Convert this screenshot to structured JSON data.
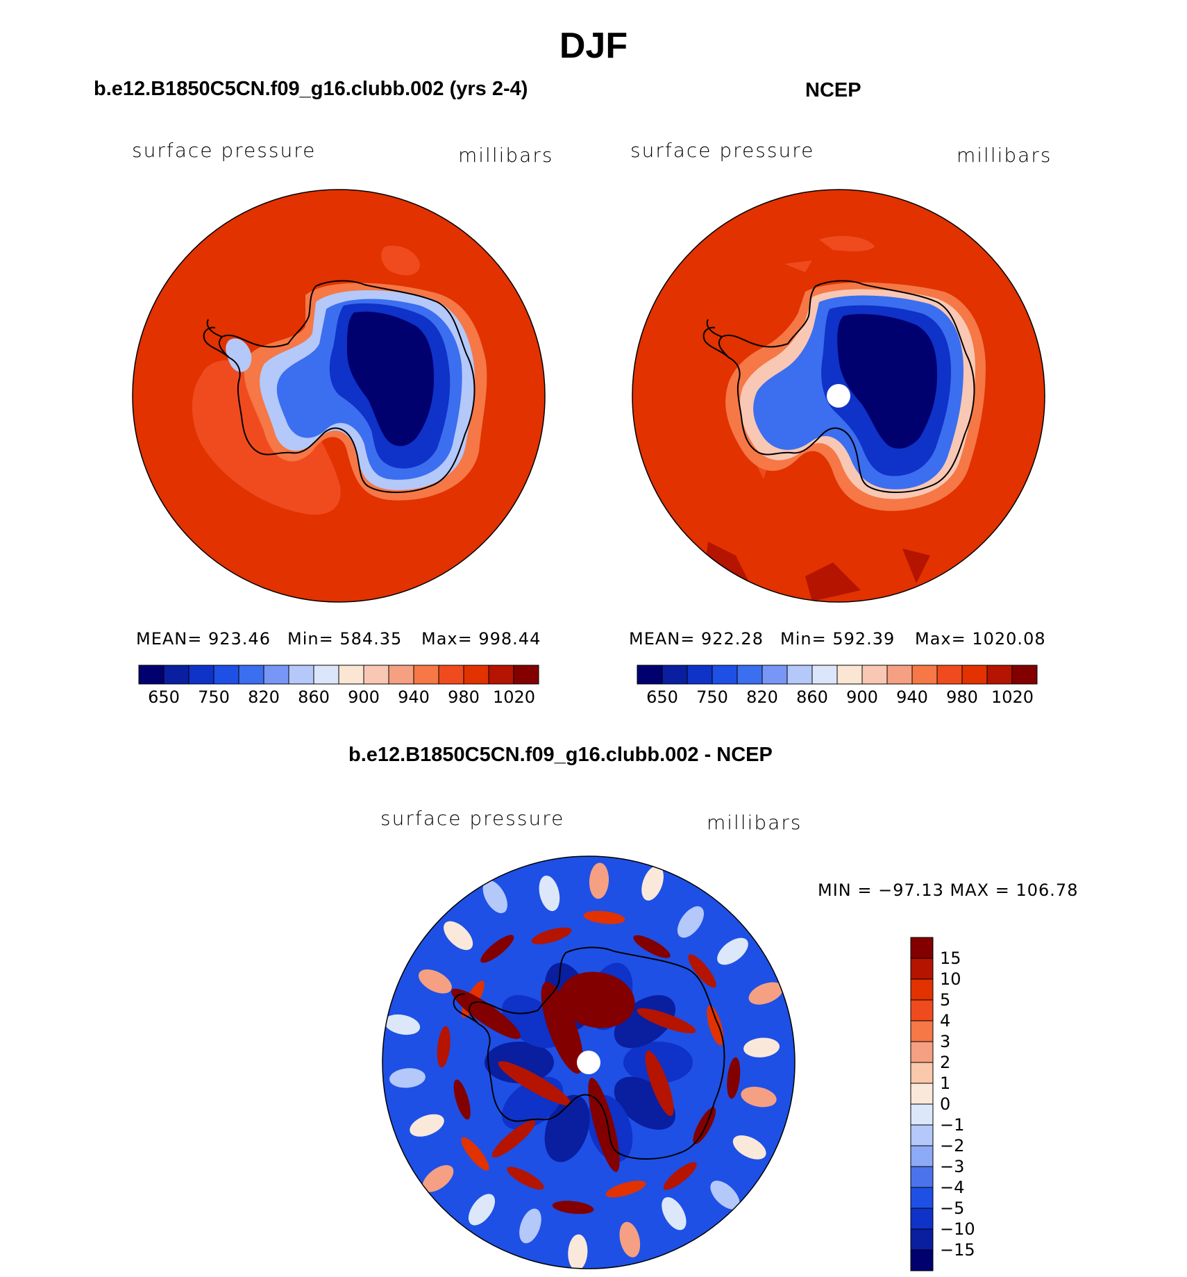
{
  "title": "DJF",
  "panels": [
    {
      "id": "model",
      "title": "b.e12.B1850C5CN.f09_g16.clubb.002 (yrs 2-4)",
      "field_label": "surface pressure",
      "units_label": "millibars",
      "stats": {
        "mean": "MEAN= 923.46",
        "min": "Min= 584.35",
        "max": "Max= 998.44"
      },
      "colorbar_ticks": [
        "650",
        "750",
        "820",
        "860",
        "900",
        "940",
        "980",
        "1020"
      ]
    },
    {
      "id": "obs",
      "title": "NCEP",
      "field_label": "surface pressure",
      "units_label": "millibars",
      "stats": {
        "mean": "MEAN= 922.28",
        "min": "Min= 592.39",
        "max": "Max= 1020.08"
      },
      "colorbar_ticks": [
        "650",
        "750",
        "820",
        "860",
        "900",
        "940",
        "980",
        "1020"
      ]
    },
    {
      "id": "diff",
      "title": "b.e12.B1850C5CN.f09_g16.clubb.002 - NCEP",
      "field_label": "surface pressure",
      "units_label": "millibars",
      "stats": {
        "minmax": "MIN = −97.13 MAX = 106.78"
      },
      "colorbar_ticks": [
        "15",
        "10",
        "5",
        "4",
        "3",
        "2",
        "1",
        "0",
        "−1",
        "−2",
        "−3",
        "−4",
        "−5",
        "−10",
        "−15"
      ]
    }
  ],
  "colors": {
    "abs_scale": [
      "#00006e",
      "#0a1ea0",
      "#0f32c8",
      "#1e50e6",
      "#3c6ef0",
      "#7896f5",
      "#b4c8fa",
      "#dce6fa",
      "#fae6d2",
      "#f8c8b4",
      "#f5a082",
      "#f57846",
      "#f04b1e",
      "#e13200",
      "#b41400",
      "#820000"
    ],
    "diff_scale": [
      "#820000",
      "#b41400",
      "#e13200",
      "#f04b1e",
      "#f57846",
      "#f5a082",
      "#fac8aa",
      "#fae8da",
      "#dce8fa",
      "#b4c8fa",
      "#8caaf5",
      "#4b73ec",
      "#1e50e6",
      "#0f32c8",
      "#0a1ea0",
      "#00006e"
    ],
    "ocean": "#e13200",
    "coast": "#000000"
  }
}
